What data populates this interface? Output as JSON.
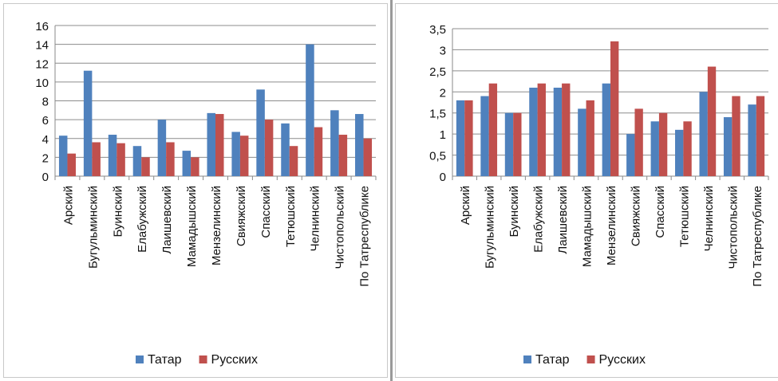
{
  "chart_data": [
    {
      "type": "bar",
      "categories": [
        "Арский",
        "Бугульминский",
        "Буинский",
        "Елабужский",
        "Лаишевский",
        "Мамадышский",
        "Мензелинский",
        "Свияжский",
        "Спасский",
        "Тетюшский",
        "Челнинский",
        "Чистопольский",
        "По Татреспублике"
      ],
      "series": [
        {
          "name": "Татар",
          "color": "#4f81bd",
          "values": [
            4.3,
            11.2,
            4.4,
            3.2,
            6.0,
            2.7,
            6.7,
            4.7,
            9.2,
            5.6,
            14.0,
            7.0,
            6.6
          ]
        },
        {
          "name": "Русских",
          "color": "#c0504d",
          "values": [
            2.4,
            3.6,
            3.5,
            2.0,
            3.6,
            2.0,
            6.6,
            4.3,
            6.0,
            3.2,
            5.2,
            4.4,
            4.0
          ]
        }
      ],
      "ylim": [
        0,
        16
      ],
      "yticks": [
        "0",
        "2",
        "4",
        "6",
        "8",
        "10",
        "12",
        "14",
        "16"
      ],
      "grid": true,
      "legend": "bottom"
    },
    {
      "type": "bar",
      "categories": [
        "Арский",
        "Бугульминский",
        "Буинский",
        "Елабужский",
        "Лаишевский",
        "Мамадышский",
        "Мензелинский",
        "Свияжский",
        "Спасский",
        "Тетюшский",
        "Челнинский",
        "Чистопольский",
        "По Татреспублике"
      ],
      "series": [
        {
          "name": "Татар",
          "color": "#4f81bd",
          "values": [
            1.8,
            1.9,
            1.5,
            2.1,
            2.1,
            1.6,
            2.2,
            1.0,
            1.3,
            1.1,
            2.0,
            1.4,
            1.7
          ]
        },
        {
          "name": "Русских",
          "color": "#c0504d",
          "values": [
            1.8,
            2.2,
            1.5,
            2.2,
            2.2,
            1.8,
            3.2,
            1.6,
            1.5,
            1.3,
            2.6,
            1.9,
            1.9
          ]
        }
      ],
      "ylim": [
        0,
        3.5
      ],
      "yticks": [
        "0",
        "0,5",
        "1",
        "1,5",
        "2",
        "2,5",
        "3",
        "3,5"
      ],
      "grid": true,
      "legend": "bottom"
    }
  ]
}
